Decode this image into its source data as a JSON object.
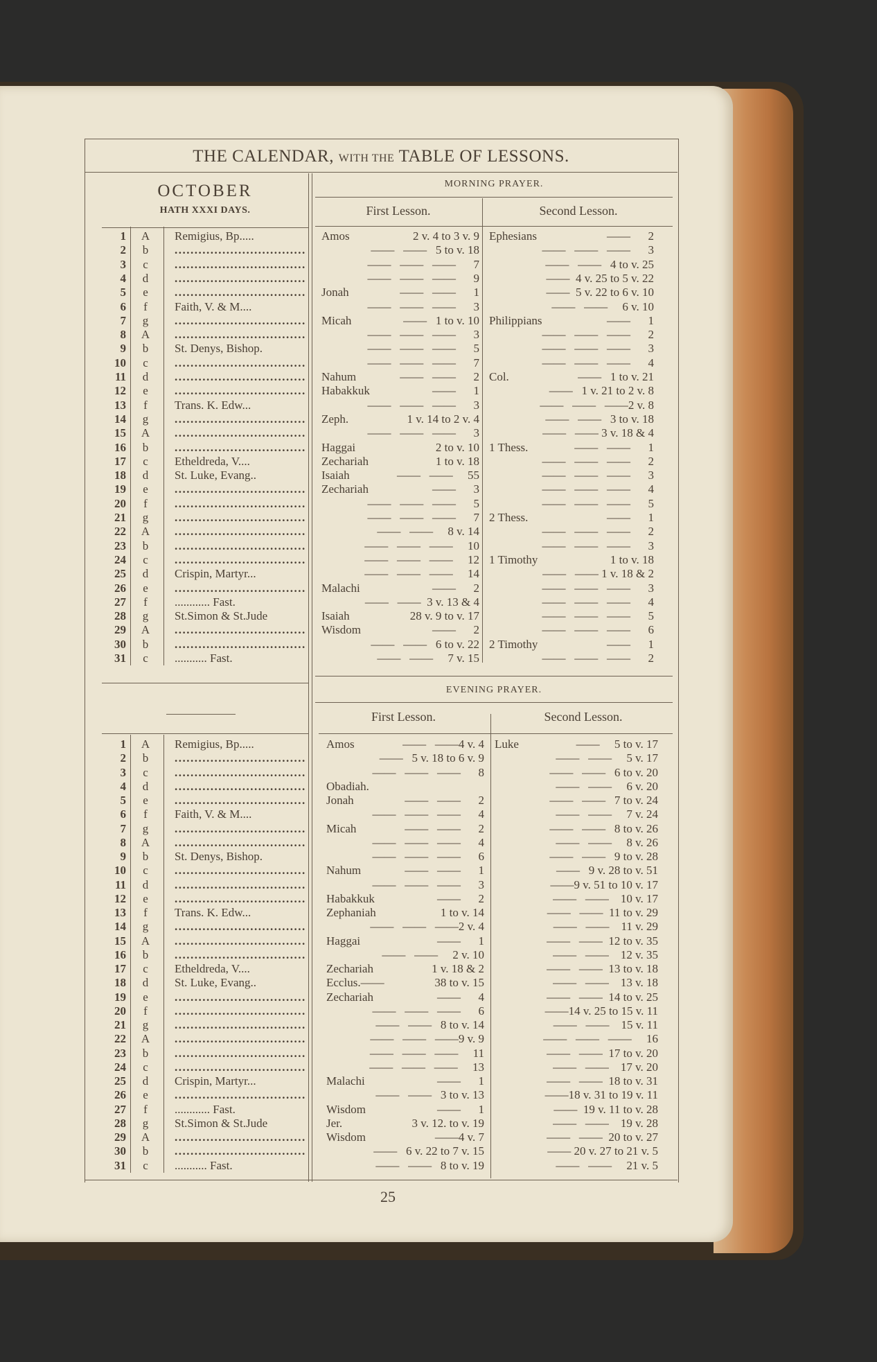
{
  "header": {
    "title_part1": "THE CALENDAR,",
    "title_part2": "WITH THE",
    "title_part3": "TABLE OF LESSONS."
  },
  "month": {
    "name": "OCTOBER",
    "days_note": "HATH XXXI DAYS."
  },
  "morning": {
    "heading": "MORNING PRAYER.",
    "first_label": "First Lesson.",
    "second_label": "Second Lesson."
  },
  "evening": {
    "heading": "EVENING PRAYER.",
    "first_label": "First Lesson.",
    "second_label": "Second Lesson."
  },
  "page_number": "25",
  "calendar": [
    {
      "day": "1",
      "letter": "A",
      "name": "Remigius, Bp....."
    },
    {
      "day": "2",
      "letter": "b",
      "name": ""
    },
    {
      "day": "3",
      "letter": "c",
      "name": ""
    },
    {
      "day": "4",
      "letter": "d",
      "name": ""
    },
    {
      "day": "5",
      "letter": "e",
      "name": ""
    },
    {
      "day": "6",
      "letter": "f",
      "name": "Faith, V. & M...."
    },
    {
      "day": "7",
      "letter": "g",
      "name": ""
    },
    {
      "day": "8",
      "letter": "A",
      "name": ""
    },
    {
      "day": "9",
      "letter": "b",
      "name": "St. Denys, Bishop."
    },
    {
      "day": "10",
      "letter": "c",
      "name": ""
    },
    {
      "day": "11",
      "letter": "d",
      "name": ""
    },
    {
      "day": "12",
      "letter": "e",
      "name": ""
    },
    {
      "day": "13",
      "letter": "f",
      "name": "Trans. K. Edw..."
    },
    {
      "day": "14",
      "letter": "g",
      "name": ""
    },
    {
      "day": "15",
      "letter": "A",
      "name": ""
    },
    {
      "day": "16",
      "letter": "b",
      "name": ""
    },
    {
      "day": "17",
      "letter": "c",
      "name": "Etheldreda, V...."
    },
    {
      "day": "18",
      "letter": "d",
      "name": "St. Luke, Evang.."
    },
    {
      "day": "19",
      "letter": "e",
      "name": ""
    },
    {
      "day": "20",
      "letter": "f",
      "name": ""
    },
    {
      "day": "21",
      "letter": "g",
      "name": ""
    },
    {
      "day": "22",
      "letter": "A",
      "name": ""
    },
    {
      "day": "23",
      "letter": "b",
      "name": ""
    },
    {
      "day": "24",
      "letter": "c",
      "name": ""
    },
    {
      "day": "25",
      "letter": "d",
      "name": "Crispin, Martyr..."
    },
    {
      "day": "26",
      "letter": "e",
      "name": ""
    },
    {
      "day": "27",
      "letter": "f",
      "name": "............ Fast."
    },
    {
      "day": "28",
      "letter": "g",
      "name": "St.Simon & St.Jude"
    },
    {
      "day": "29",
      "letter": "A",
      "name": ""
    },
    {
      "day": "30",
      "letter": "b",
      "name": ""
    },
    {
      "day": "31",
      "letter": "c",
      "name": "........... Fast."
    }
  ],
  "morning_first": [
    {
      "book": "Amos",
      "ref": "2 v. 4 to 3 v. 9"
    },
    {
      "book": "",
      "ref": "——   ——   5 to v. 18"
    },
    {
      "book": "",
      "ref": "——   ——   ——      7"
    },
    {
      "book": "",
      "ref": "——   ——   ——      9"
    },
    {
      "book": "Jonah",
      "ref": "——   ——      1"
    },
    {
      "book": "",
      "ref": "——   ——   ——      3"
    },
    {
      "book": "Micah",
      "ref": "——   1 to v. 10"
    },
    {
      "book": "",
      "ref": "——   ——   ——      3"
    },
    {
      "book": "",
      "ref": "——   ——   ——      5"
    },
    {
      "book": "",
      "ref": "——   ——   ——      7"
    },
    {
      "book": "Nahum",
      "ref": "——   ——      2"
    },
    {
      "book": "Habakkuk",
      "ref": "——      1"
    },
    {
      "book": "",
      "ref": "——   ——   ——      3"
    },
    {
      "book": "Zeph.",
      "ref": "1 v. 14 to 2 v. 4"
    },
    {
      "book": "",
      "ref": "——   ——   ——      3"
    },
    {
      "book": "Haggai",
      "ref": "2 to v. 10"
    },
    {
      "book": "Zechariah",
      "ref": "1 to v. 18"
    },
    {
      "book": "Isaiah",
      "ref": "——   ——     55"
    },
    {
      "book": "Zechariah",
      "ref": "——      3"
    },
    {
      "book": "",
      "ref": "——   ——   ——      5"
    },
    {
      "book": "",
      "ref": "——   ——   ——      7"
    },
    {
      "book": "",
      "ref": "——   ——     8 v. 14"
    },
    {
      "book": "",
      "ref": "——   ——   ——     10"
    },
    {
      "book": "",
      "ref": "——   ——   ——     12"
    },
    {
      "book": "",
      "ref": "——   ——   ——     14"
    },
    {
      "book": "Malachi",
      "ref": "——      2"
    },
    {
      "book": "",
      "ref": "——   ——  3 v. 13 & 4"
    },
    {
      "book": "Isaiah",
      "ref": "28 v. 9 to v. 17"
    },
    {
      "book": "Wisdom",
      "ref": "——      2"
    },
    {
      "book": "",
      "ref": "——   ——   6 to v. 22"
    },
    {
      "book": "",
      "ref": "——   ——     7 v. 15"
    }
  ],
  "morning_second": [
    {
      "book": "Ephesians",
      "ref": "——      2"
    },
    {
      "book": "",
      "ref": "——   ——   ——      3"
    },
    {
      "book": "",
      "ref": "——   ——   4 to v. 25"
    },
    {
      "book": "",
      "ref": "——  4 v. 25 to 5 v. 22"
    },
    {
      "book": "",
      "ref": "——  5 v. 22 to 6 v. 10"
    },
    {
      "book": "",
      "ref": "——   ——     6 v. 10"
    },
    {
      "book": "Philippians",
      "ref": "——      1"
    },
    {
      "book": "",
      "ref": "——   ——   ——      2"
    },
    {
      "book": "",
      "ref": "——   ——   ——      3"
    },
    {
      "book": "",
      "ref": "——   ——   ——      4"
    },
    {
      "book": "Col.",
      "ref": "——   1 to v. 21"
    },
    {
      "book": "",
      "ref": "——   1 v. 21 to 2 v. 8"
    },
    {
      "book": "",
      "ref": "——   ——   ——2 v. 8"
    },
    {
      "book": "",
      "ref": "——   ——   3 to v. 18"
    },
    {
      "book": "",
      "ref": "——   —— 3 v. 18 & 4"
    },
    {
      "book": "1 Thess.",
      "ref": "——   ——      1"
    },
    {
      "book": "",
      "ref": "——   ——   ——      2"
    },
    {
      "book": "",
      "ref": "——   ——   ——      3"
    },
    {
      "book": "",
      "ref": "——   ——   ——      4"
    },
    {
      "book": "",
      "ref": "——   ——   ——      5"
    },
    {
      "book": "2 Thess.",
      "ref": "——      1"
    },
    {
      "book": "",
      "ref": "——   ——   ——      2"
    },
    {
      "book": "",
      "ref": "——   ——   ——      3"
    },
    {
      "book": "1 Timothy",
      "ref": "1 to v. 18"
    },
    {
      "book": "",
      "ref": "——   —— 1 v. 18 & 2"
    },
    {
      "book": "",
      "ref": "——   ——   ——      3"
    },
    {
      "book": "",
      "ref": "——   ——   ——      4"
    },
    {
      "book": "",
      "ref": "——   ——   ——      5"
    },
    {
      "book": "",
      "ref": "——   ——   ——      6"
    },
    {
      "book": "2 Timothy",
      "ref": "——      1"
    },
    {
      "book": "",
      "ref": "——   ——   ——      2"
    }
  ],
  "evening_first": [
    {
      "book": "Amos",
      "ref": "——   ——4 v. 4"
    },
    {
      "book": "",
      "ref": "——   5 v. 18 to 6 v. 9"
    },
    {
      "book": "",
      "ref": "——   ——   ——      8"
    },
    {
      "book": "Obadiah.",
      "ref": ""
    },
    {
      "book": "Jonah",
      "ref": "——   ——      2"
    },
    {
      "book": "",
      "ref": "——   ——   ——      4"
    },
    {
      "book": "Micah",
      "ref": "——   ——      2"
    },
    {
      "book": "",
      "ref": "——   ——   ——      4"
    },
    {
      "book": "",
      "ref": "——   ——   ——      6"
    },
    {
      "book": "Nahum",
      "ref": "——   ——      1"
    },
    {
      "book": "",
      "ref": "——   ——   ——      3"
    },
    {
      "book": "Habakkuk",
      "ref": "——      2"
    },
    {
      "book": "Zephaniah",
      "ref": "1 to v. 14"
    },
    {
      "book": "",
      "ref": "——   ——   ——2 v. 4"
    },
    {
      "book": "Haggai",
      "ref": "——      1"
    },
    {
      "book": "",
      "ref": "——   ——     2 v. 10"
    },
    {
      "book": "Zechariah",
      "ref": "1 v. 18 & 2"
    },
    {
      "book": "Ecclus.——",
      "ref": "38 to v. 15"
    },
    {
      "book": "Zechariah",
      "ref": "——      4"
    },
    {
      "book": "",
      "ref": "——   ——   ——      6"
    },
    {
      "book": "",
      "ref": "——   ——   8 to v. 14"
    },
    {
      "book": "",
      "ref": "——   ——   ——9 v. 9"
    },
    {
      "book": "",
      "ref": "——   ——   ——     11"
    },
    {
      "book": "",
      "ref": "——   ——   ——     13"
    },
    {
      "book": "Malachi",
      "ref": "——      1"
    },
    {
      "book": "",
      "ref": "——   ——   3 to v. 13"
    },
    {
      "book": "Wisdom",
      "ref": "——      1"
    },
    {
      "book": "Jer.",
      "ref": "3 v. 12. to v. 19"
    },
    {
      "book": "Wisdom",
      "ref": "——4 v. 7"
    },
    {
      "book": "",
      "ref": "——   6 v. 22 to 7 v. 15"
    },
    {
      "book": "",
      "ref": "——   ——   8 to v. 19"
    }
  ],
  "evening_second": [
    {
      "book": "Luke",
      "ref": "——     5 to v. 17"
    },
    {
      "book": "",
      "ref": "——   ——     5 v. 17"
    },
    {
      "book": "",
      "ref": "——   ——   6 to v. 20"
    },
    {
      "book": "",
      "ref": "——   ——     6 v. 20"
    },
    {
      "book": "",
      "ref": "——   ——   7 to v. 24"
    },
    {
      "book": "",
      "ref": "——   ——     7 v. 24"
    },
    {
      "book": "",
      "ref": "——   ——   8 to v. 26"
    },
    {
      "book": "",
      "ref": "——   ——     8 v. 26"
    },
    {
      "book": "",
      "ref": "——   ——   9 to v. 28"
    },
    {
      "book": "",
      "ref": "——   9 v. 28 to v. 51"
    },
    {
      "book": "",
      "ref": "——9 v. 51 to 10 v. 17"
    },
    {
      "book": "",
      "ref": "——   ——    10 v. 17"
    },
    {
      "book": "",
      "ref": "——   ——  11 to v. 29"
    },
    {
      "book": "",
      "ref": "——   ——    11 v. 29"
    },
    {
      "book": "",
      "ref": "——   ——  12 to v. 35"
    },
    {
      "book": "",
      "ref": "——   ——    12 v. 35"
    },
    {
      "book": "",
      "ref": "——   ——  13 to v. 18"
    },
    {
      "book": "",
      "ref": "——   ——    13 v. 18"
    },
    {
      "book": "",
      "ref": "——   ——  14 to v. 25"
    },
    {
      "book": "",
      "ref": "——14 v. 25 to 15 v. 11"
    },
    {
      "book": "",
      "ref": "——   ——    15 v. 11"
    },
    {
      "book": "",
      "ref": "——   ——   ——     16"
    },
    {
      "book": "",
      "ref": "——   ——  17 to v. 20"
    },
    {
      "book": "",
      "ref": "——   ——    17 v. 20"
    },
    {
      "book": "",
      "ref": "——   ——  18 to v. 31"
    },
    {
      "book": "",
      "ref": "——18 v. 31 to 19 v. 11"
    },
    {
      "book": "",
      "ref": "——  19 v. 11 to v. 28"
    },
    {
      "book": "",
      "ref": "——   ——    19 v. 28"
    },
    {
      "book": "",
      "ref": "——   ——  20 to v. 27"
    },
    {
      "book": "",
      "ref": "—— 20 v. 27 to 21 v. 5"
    },
    {
      "book": "",
      "ref": "——   ——     21 v. 5"
    }
  ]
}
